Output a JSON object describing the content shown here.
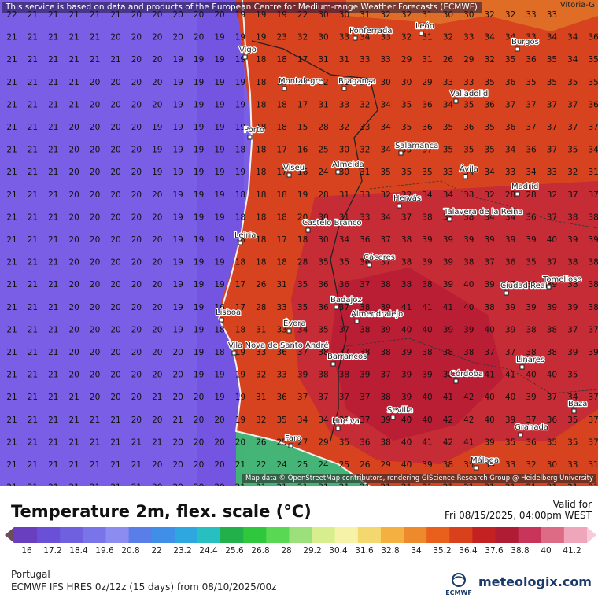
{
  "map": {
    "disclaimer": "This service is based on data and products of the European Centre for Medium-range Weather Forecasts (ECMWF)",
    "attribution": "Map data © OpenStreetMap contributors, rendering GIScience Research Group @ Heidelberg University",
    "corner_city": "Vitoria-G",
    "rows": [
      [
        22,
        21,
        21,
        21,
        21,
        21,
        20,
        20,
        20,
        20,
        20,
        19,
        19,
        19,
        22,
        30,
        30,
        31,
        32,
        32,
        31,
        30,
        30,
        32,
        32,
        33,
        33
      ],
      [
        21,
        21,
        21,
        21,
        21,
        20,
        20,
        20,
        20,
        20,
        19,
        19,
        19,
        23,
        32,
        30,
        33,
        34,
        33,
        32,
        31,
        32,
        33,
        34,
        34,
        33,
        34,
        34,
        36,
        36
      ],
      [
        21,
        21,
        21,
        21,
        21,
        21,
        20,
        20,
        19,
        19,
        19,
        19,
        18,
        18,
        17,
        31,
        31,
        33,
        33,
        29,
        31,
        26,
        29,
        32,
        35,
        36,
        35,
        34,
        35,
        35,
        35,
        33,
        30,
        29,
        30
      ],
      [
        21,
        21,
        21,
        21,
        20,
        20,
        20,
        20,
        19,
        19,
        19,
        19,
        18,
        18,
        17,
        32,
        31,
        29,
        30,
        30,
        29,
        33,
        33,
        35,
        36,
        35,
        35,
        35,
        35,
        35,
        34,
        33,
        31,
        31
      ],
      [
        21,
        21,
        21,
        21,
        20,
        20,
        20,
        20,
        19,
        19,
        19,
        19,
        18,
        18,
        17,
        31,
        33,
        32,
        34,
        35,
        36,
        34,
        35,
        36,
        37,
        37,
        37,
        37,
        36,
        36,
        36,
        36,
        35,
        35
      ],
      [
        21,
        21,
        21,
        20,
        20,
        20,
        20,
        19,
        19,
        19,
        19,
        19,
        18,
        18,
        15,
        28,
        32,
        33,
        34,
        35,
        36,
        35,
        36,
        35,
        36,
        37,
        37,
        37,
        37,
        36,
        33,
        32,
        33
      ],
      [
        21,
        21,
        21,
        20,
        20,
        20,
        20,
        19,
        19,
        19,
        19,
        18,
        18,
        17,
        16,
        25,
        30,
        32,
        34,
        35,
        37,
        35,
        35,
        35,
        34,
        36,
        37,
        35,
        34,
        30,
        32,
        34,
        34
      ],
      [
        21,
        21,
        21,
        20,
        20,
        20,
        20,
        19,
        19,
        19,
        19,
        19,
        18,
        17,
        16,
        24,
        30,
        31,
        35,
        35,
        35,
        33,
        34,
        34,
        33,
        34,
        33,
        32,
        31,
        34,
        37,
        36,
        37
      ],
      [
        21,
        21,
        21,
        20,
        20,
        20,
        20,
        20,
        19,
        19,
        19,
        18,
        18,
        18,
        19,
        28,
        31,
        33,
        32,
        32,
        34,
        34,
        33,
        32,
        28,
        28,
        32,
        37,
        37,
        37,
        38,
        36,
        38
      ],
      [
        21,
        21,
        21,
        20,
        20,
        20,
        20,
        20,
        19,
        19,
        19,
        18,
        18,
        18,
        20,
        30,
        31,
        33,
        34,
        37,
        38,
        38,
        38,
        34,
        34,
        36,
        37,
        38,
        38,
        37,
        38,
        38,
        38
      ],
      [
        21,
        21,
        21,
        20,
        20,
        20,
        20,
        20,
        19,
        19,
        19,
        18,
        18,
        17,
        18,
        30,
        34,
        36,
        37,
        38,
        39,
        39,
        39,
        39,
        39,
        39,
        40,
        39,
        39,
        39,
        37,
        38,
        38
      ],
      [
        21,
        21,
        21,
        20,
        20,
        20,
        20,
        20,
        19,
        19,
        19,
        18,
        18,
        18,
        28,
        35,
        35,
        36,
        37,
        38,
        39,
        39,
        38,
        37,
        36,
        35,
        37,
        38,
        38,
        37,
        37,
        37,
        37
      ],
      [
        21,
        21,
        21,
        20,
        20,
        20,
        20,
        20,
        19,
        19,
        19,
        17,
        26,
        31,
        35,
        36,
        36,
        37,
        38,
        38,
        38,
        39,
        40,
        39,
        37,
        38,
        39,
        38,
        38,
        37,
        36,
        38
      ],
      [
        21,
        21,
        21,
        20,
        20,
        20,
        20,
        20,
        19,
        19,
        16,
        17,
        28,
        33,
        35,
        36,
        37,
        38,
        39,
        41,
        41,
        41,
        40,
        38,
        39,
        39,
        39,
        39,
        38,
        37,
        37,
        36
      ],
      [
        21,
        21,
        21,
        20,
        20,
        20,
        20,
        20,
        19,
        19,
        18,
        18,
        31,
        33,
        34,
        35,
        37,
        38,
        39,
        40,
        40,
        39,
        39,
        40,
        39,
        38,
        38,
        37,
        37,
        37,
        37
      ],
      [
        21,
        21,
        21,
        20,
        20,
        20,
        20,
        20,
        20,
        19,
        18,
        19,
        33,
        36,
        37,
        38,
        37,
        38,
        38,
        39,
        38,
        38,
        38,
        37,
        37,
        38,
        38,
        39,
        39
      ],
      [
        21,
        21,
        21,
        20,
        20,
        20,
        20,
        20,
        20,
        19,
        19,
        19,
        32,
        33,
        39,
        38,
        38,
        39,
        37,
        39,
        39,
        38,
        39,
        41,
        41,
        40,
        40,
        35
      ],
      [
        21,
        21,
        21,
        21,
        20,
        20,
        20,
        21,
        20,
        20,
        19,
        19,
        31,
        36,
        37,
        37,
        37,
        37,
        38,
        39,
        40,
        41,
        42,
        40,
        40,
        39,
        37,
        34,
        37,
        34
      ],
      [
        21,
        21,
        21,
        21,
        21,
        21,
        20,
        20,
        21,
        20,
        20,
        19,
        32,
        35,
        34,
        34,
        35,
        37,
        39,
        40,
        40,
        42,
        42,
        40,
        39,
        37,
        36,
        35,
        37,
        33
      ],
      [
        21,
        21,
        21,
        21,
        21,
        21,
        21,
        21,
        20,
        20,
        20,
        20,
        26,
        25,
        27,
        29,
        35,
        36,
        38,
        40,
        41,
        42,
        41,
        39,
        35,
        36,
        35,
        35,
        37,
        30,
        24,
        29
      ],
      [
        21,
        21,
        21,
        21,
        21,
        21,
        21,
        20,
        20,
        20,
        20,
        21,
        22,
        24,
        25,
        24,
        25,
        26,
        29,
        40,
        39,
        38,
        35,
        34,
        33,
        32,
        30,
        33,
        31,
        32,
        30
      ],
      [
        21,
        21,
        21,
        21,
        21,
        21,
        21,
        20,
        20,
        20,
        20,
        21,
        21,
        21,
        21,
        21,
        21,
        21,
        21,
        21,
        21,
        21,
        21,
        21,
        21,
        21,
        21,
        21,
        21,
        21
      ]
    ],
    "cities": [
      {
        "name": "Ponferrada"
      },
      {
        "name": "León"
      },
      {
        "name": "Burgos"
      },
      {
        "name": "Vigo"
      },
      {
        "name": "Montalegre"
      },
      {
        "name": "Bragança"
      },
      {
        "name": "Valladolid"
      },
      {
        "name": "Porto"
      },
      {
        "name": "Salamanca"
      },
      {
        "name": "Viseu"
      },
      {
        "name": "Almeida"
      },
      {
        "name": "Ávila"
      },
      {
        "name": "Madrid"
      },
      {
        "name": "Hervás"
      },
      {
        "name": "Talavera de la Reina"
      },
      {
        "name": "Castelo Branco"
      },
      {
        "name": "Leiria"
      },
      {
        "name": "Cáceres"
      },
      {
        "name": "Ciudad Real"
      },
      {
        "name": "Tomelloso"
      },
      {
        "name": "Badajoz"
      },
      {
        "name": "Lisboa"
      },
      {
        "name": "Almendralejo"
      },
      {
        "name": "Évora"
      },
      {
        "name": "Vila Nova de Santo André"
      },
      {
        "name": "Barrancos"
      },
      {
        "name": "Linares"
      },
      {
        "name": "Córdoba"
      },
      {
        "name": "Baza"
      },
      {
        "name": "Sevilla"
      },
      {
        "name": "Huelva"
      },
      {
        "name": "Granada"
      },
      {
        "name": "Faro"
      },
      {
        "name": "Málaga"
      }
    ]
  },
  "footer": {
    "title": "Temperature 2m, flex. scale (°C)",
    "valid_label": "Valid for",
    "valid_date": "Fri 08/15/2025, 04:00pm WEST",
    "region": "Portugal",
    "model": "ECMWF IFS HRES 0z/12z (15 days) from 08/10/2025/00z",
    "brand": "meteologix.com",
    "logo_text": "ECMWF"
  },
  "colorbar": {
    "ticks": [
      "16",
      "17.2",
      "18.4",
      "19.6",
      "20.8",
      "22",
      "23.2",
      "24.4",
      "25.6",
      "26.8",
      "28",
      "29.2",
      "30.4",
      "31.6",
      "32.8",
      "34",
      "35.2",
      "36.4",
      "37.6",
      "38.8",
      "40",
      "41.2"
    ],
    "colors": [
      "#6b4e5a",
      "#6a3fbf",
      "#6a50d6",
      "#6f60e0",
      "#7a74ea",
      "#8c8cf0",
      "#5a7ee8",
      "#3f8ee8",
      "#2ea6e0",
      "#27bfc0",
      "#22b04a",
      "#2fc83c",
      "#59d854",
      "#9be07a",
      "#d8ee8e",
      "#f6f3a8",
      "#f5d770",
      "#f4b040",
      "#ef8a2c",
      "#e8601c",
      "#d9401c",
      "#c42222",
      "#b01c34",
      "#c8345a",
      "#dd6b86",
      "#f0a6ba",
      "#f6cad6"
    ]
  }
}
